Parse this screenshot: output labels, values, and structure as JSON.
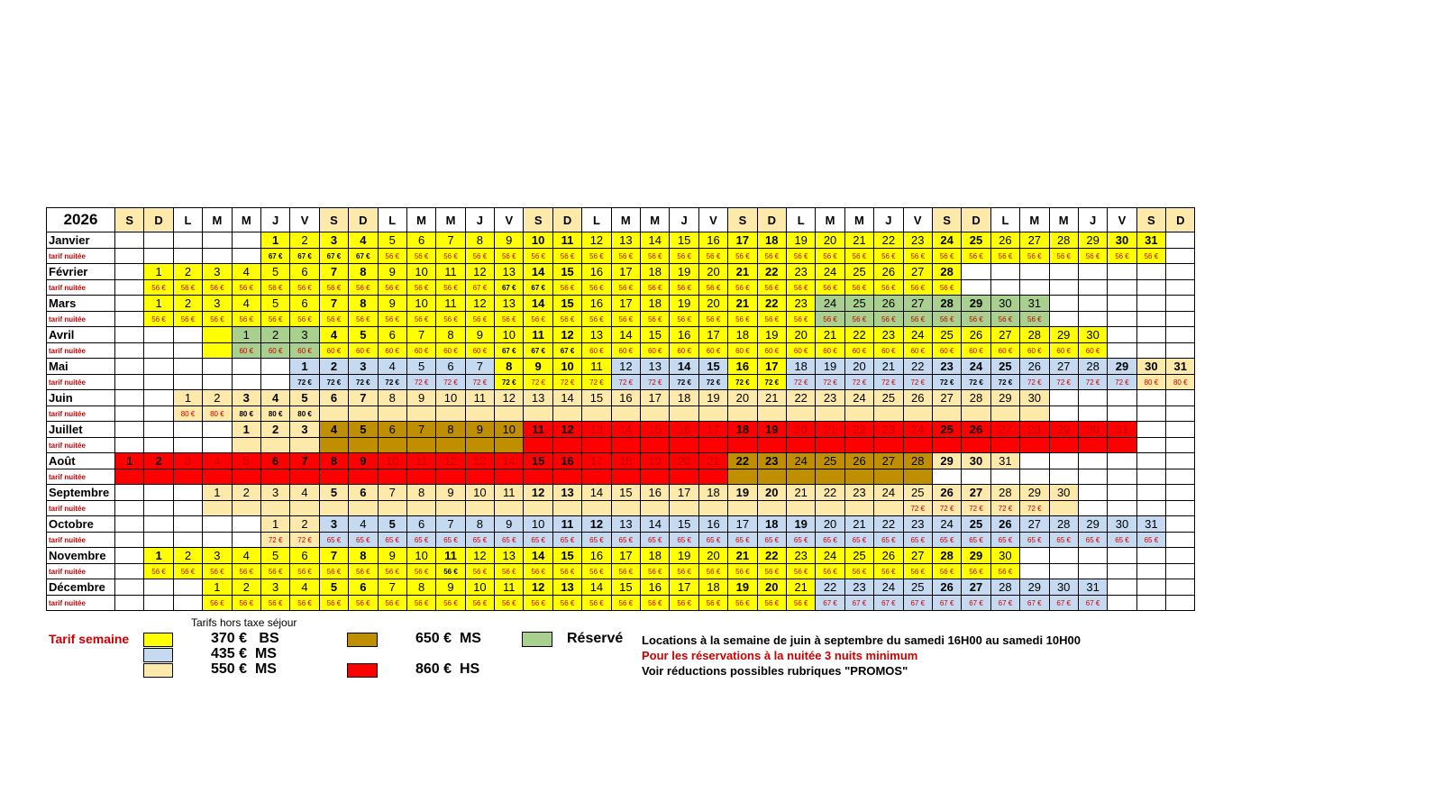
{
  "year": "2026",
  "day_headers": [
    "S",
    "D",
    "L",
    "M",
    "M",
    "J",
    "V",
    "S",
    "D",
    "L",
    "M",
    "M",
    "J",
    "V",
    "S",
    "D",
    "L",
    "M",
    "M",
    "J",
    "V",
    "S",
    "D",
    "L",
    "M",
    "M",
    "J",
    "V",
    "S",
    "D",
    "L",
    "M",
    "M",
    "J",
    "V",
    "S",
    "D"
  ],
  "price_row_label": "tarif nuitée",
  "months": [
    {
      "name": "Janvier",
      "offset": 5,
      "days": 31,
      "bold": [
        1,
        3,
        4,
        10,
        11,
        17,
        18,
        24,
        25,
        30,
        31
      ],
      "colors": "YYYYYYYYYYYYYYYYYYYYYYYYYYYYYYY",
      "prices": [
        "67 €",
        "67 €",
        "67 €",
        "67 €",
        "56 €",
        "56 €",
        "56 €",
        "56 €",
        "56 €",
        "56 €",
        "56 €",
        "56 €",
        "56 €",
        "56 €",
        "56 €",
        "56 €",
        "56 €",
        "56 €",
        "56 €",
        "56 €",
        "56 €",
        "56 €",
        "56 €",
        "56 €",
        "56 €",
        "56 €",
        "56 €",
        "56 €",
        "56 €",
        "56 €",
        "56 €"
      ],
      "dark": [
        0,
        1,
        2,
        3
      ]
    },
    {
      "name": "Février",
      "offset": 1,
      "days": 28,
      "bold": [
        7,
        8,
        14,
        15,
        21,
        22,
        28
      ],
      "colors": "YYYYYYYYYYYYYYYYYYYYYYYYYYYY",
      "prices": [
        "56 €",
        "56 €",
        "56 €",
        "56 €",
        "56 €",
        "56 €",
        "56 €",
        "56 €",
        "56 €",
        "56 €",
        "56 €",
        "67 €",
        "67 €",
        "67 €",
        "56 €",
        "56 €",
        "56 €",
        "56 €",
        "56 €",
        "56 €",
        "56 €",
        "56 €",
        "56 €",
        "56 €",
        "56 €",
        "56 €",
        "56 €",
        "56 €"
      ],
      "dark": [
        12,
        13
      ]
    },
    {
      "name": "Mars",
      "offset": 1,
      "days": 31,
      "bold": [
        7,
        8,
        14,
        15,
        21,
        22,
        28,
        29
      ],
      "colors": "YYYYYYYYYYYYYYYYYYYYYYYGGGGGGGG",
      "prices": [
        "56 €",
        "56 €",
        "56 €",
        "56 €",
        "56 €",
        "56 €",
        "56 €",
        "56 €",
        "56 €",
        "56 €",
        "56 €",
        "56 €",
        "56 €",
        "56 €",
        "56 €",
        "56 €",
        "56 €",
        "56 €",
        "56 €",
        "56 €",
        "56 €",
        "56 €",
        "56 €",
        "56 €",
        "56 €",
        "56 €",
        "56 €",
        "56 €",
        "56 €",
        "56 €",
        "56 €"
      ],
      "dark": []
    },
    {
      "name": "Avril",
      "offset": 4,
      "days": 30,
      "bold": [
        4,
        5,
        11,
        12
      ],
      "colors": "GGGYYYYYYYYYYYYYYYYYYYYYYYYYYY",
      "prices": [
        "60 €",
        "60 €",
        "60 €",
        "60 €",
        "60 €",
        "60 €",
        "60 €",
        "60 €",
        "60 €",
        "67 €",
        "67 €",
        "67 €",
        "60 €",
        "60 €",
        "60 €",
        "60 €",
        "60 €",
        "60 €",
        "60 €",
        "60 €",
        "60 €",
        "60 €",
        "60 €",
        "60 €",
        "60 €",
        "60 €",
        "60 €",
        "60 €",
        "60 €",
        "60 €"
      ],
      "dark": [
        9,
        10,
        11
      ],
      "lead": "Y"
    },
    {
      "name": "Mai",
      "offset": 6,
      "days": 31,
      "bold": [
        1,
        2,
        3,
        8,
        9,
        10,
        14,
        15,
        16,
        17,
        23,
        24,
        25,
        29,
        30,
        31
      ],
      "colors": "LLLLLLLYYYYLLLLYYLLLLLLLLLLLLTT",
      "prices": [
        "72 €",
        "72 €",
        "72 €",
        "72 €",
        "72 €",
        "72 €",
        "72 €",
        "72 €",
        "72 €",
        "72 €",
        "72 €",
        "72 €",
        "72 €",
        "72 €",
        "72 €",
        "72 €",
        "72 €",
        "72 €",
        "72 €",
        "72 €",
        "72 €",
        "72 €",
        "72 €",
        "72 €",
        "72 €",
        "72 €",
        "72 €",
        "72 €",
        "72 €",
        "80 €",
        "80 €"
      ],
      "dark": [
        0,
        1,
        2,
        3,
        7,
        13,
        14,
        15,
        16,
        22,
        23,
        24
      ]
    },
    {
      "name": "Juin",
      "offset": 2,
      "days": 30,
      "bold": [
        3,
        4,
        5,
        6,
        7
      ],
      "colors": "TTTTTTTTTTTTTTTTTTTTTTTTTTTTTT",
      "prices": [
        "80 €",
        "80 €",
        "80 €",
        "80 €",
        "80 €",
        "",
        "",
        "",
        "",
        "",
        "",
        "",
        "",
        "",
        "",
        "",
        "",
        "",
        "",
        "",
        "",
        "",
        "",
        "",
        "",
        "",
        "",
        "",
        "",
        ""
      ],
      "dark": [],
      "boldp": [
        2,
        3,
        4
      ]
    },
    {
      "name": "Juillet",
      "offset": 4,
      "days": 31,
      "bold": [
        1,
        2,
        3,
        4,
        5,
        11,
        12,
        18,
        19,
        25,
        26
      ],
      "colors": "TTTOOOOOOORRRRRRRRRRRRRRRRRRRRR",
      "prices": [],
      "dark": []
    },
    {
      "name": "Août",
      "offset": 0,
      "days": 31,
      "bold": [
        1,
        2,
        6,
        7,
        8,
        9,
        15,
        16,
        22,
        23,
        29,
        30
      ],
      "colors": "RRRRRRRRRRRRRRRRRRRRROOOOOOOTTT",
      "prices": [],
      "dark": [],
      "plainText": [
        29,
        30,
        31
      ]
    },
    {
      "name": "Septembre",
      "offset": 3,
      "days": 30,
      "bold": [
        5,
        6,
        12,
        13,
        19,
        20,
        26,
        27
      ],
      "colors": "TTTTTTTTTTTTTTTTTTTTTTTTTTTTTT",
      "prices": [
        "",
        "",
        "",
        "",
        "",
        "",
        "",
        "",
        "",
        "",
        "",
        "",
        "",
        "",
        "",
        "",
        "",
        "",
        "",
        "",
        "",
        "",
        "",
        "",
        "72 €",
        "72 €",
        "72 €",
        "72 €",
        "72 €",
        ""
      ],
      "dark": []
    },
    {
      "name": "Octobre",
      "offset": 5,
      "days": 31,
      "bold": [
        3,
        5,
        11,
        12,
        18,
        19,
        25,
        26
      ],
      "colors": "TTLLLLLLLLLLLLLLLLLLLLLLLLLLLLL",
      "prices": [
        "72 €",
        "72 €",
        "65 €",
        "65 €",
        "65 €",
        "65 €",
        "65 €",
        "65 €",
        "65 €",
        "65 €",
        "65 €",
        "65 €",
        "65 €",
        "65 €",
        "65 €",
        "65 €",
        "65 €",
        "65 €",
        "65 €",
        "65 €",
        "65 €",
        "65 €",
        "65 €",
        "65 €",
        "65 €",
        "65 €",
        "65 €",
        "65 €",
        "65 €",
        "65 €",
        "65 €"
      ],
      "dark": []
    },
    {
      "name": "Novembre",
      "offset": 1,
      "days": 30,
      "bold": [
        1,
        7,
        8,
        11,
        14,
        15,
        21,
        22,
        28,
        29
      ],
      "colors": "YYYYYYYYYYYYYYYYYYYYYYYYYYYYYY",
      "prices": [
        "56 €",
        "56 €",
        "56 €",
        "56 €",
        "56 €",
        "56 €",
        "56 €",
        "56 €",
        "56 €",
        "56 €",
        "56 €",
        "56 €",
        "56 €",
        "56 €",
        "56 €",
        "56 €",
        "56 €",
        "56 €",
        "56 €",
        "56 €",
        "56 €",
        "56 €",
        "56 €",
        "56 €",
        "56 €",
        "56 €",
        "56 €",
        "56 €",
        "56 €",
        "56 €"
      ],
      "dark": [
        10
      ]
    },
    {
      "name": "Décembre",
      "offset": 3,
      "days": 31,
      "bold": [
        5,
        6,
        12,
        13,
        19,
        20,
        26,
        27
      ],
      "colors": "YYYYYYYYYYYYYYYYYYYYYLLLLLLLLLL",
      "prices": [
        "56 €",
        "56 €",
        "56 €",
        "56 €",
        "56 €",
        "56 €",
        "56 €",
        "56 €",
        "56 €",
        "56 €",
        "56 €",
        "56 €",
        "56 €",
        "56 €",
        "56 €",
        "56 €",
        "56 €",
        "56 €",
        "56 €",
        "56 €",
        "56 €",
        "67 €",
        "67 €",
        "67 €",
        "67 €",
        "67 €",
        "67 €",
        "67 €",
        "67 €",
        "67 €",
        "67 €"
      ],
      "dark": []
    }
  ],
  "legend": {
    "tarifs_hors_taxe": "Tarifs hors taxe séjour",
    "tarif_semaine": "Tarif semaine",
    "items": [
      {
        "price": "370 €",
        "code": "BS",
        "color": "#ffff00"
      },
      {
        "price": "435 €",
        "code": "MS",
        "color": "#c5d9f1"
      },
      {
        "price": "550 €",
        "code": "MS",
        "color": "#fde9a9"
      },
      {
        "price": "650 €",
        "code": "MS",
        "color": "#bf8f00"
      },
      {
        "price": "860 €",
        "code": "HS",
        "color": "#ff0000"
      }
    ],
    "reserved_label": "Réservé",
    "reserved_color": "#a9d08e"
  },
  "notes": [
    "Locations à la semaine de juin à septembre du samedi 16H00 au samedi 10H00",
    "Pour les réservations à la nuitée 3 nuits minimum",
    "Voir réductions possibles rubriques \"PROMOS\""
  ],
  "note_colors": [
    "#000000",
    "#cc0000",
    "#000000"
  ]
}
